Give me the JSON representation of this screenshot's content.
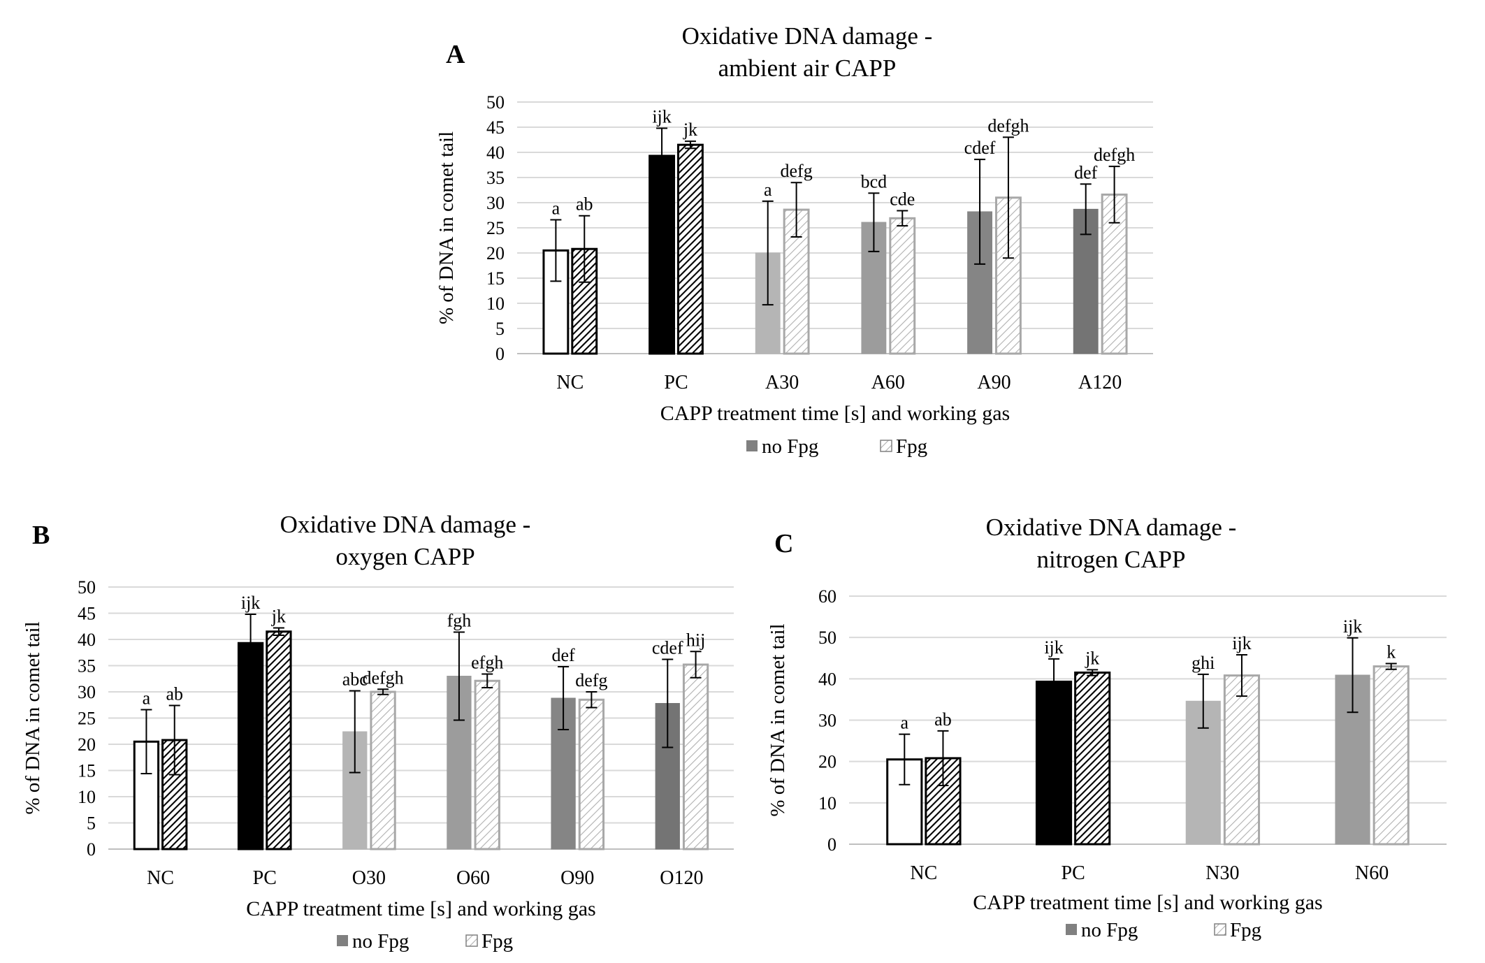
{
  "chart_data": [
    {
      "panel_label": "A",
      "type": "bar",
      "title_line1": "Oxidative DNA damage -",
      "title_line2": "ambient air CAPP",
      "xlabel": "CAPP treatment time [s] and working gas",
      "ylabel": "% of DNA in comet tail",
      "ylim": [
        0,
        50
      ],
      "ytick_step": 5,
      "categories": [
        "NC",
        "PC",
        "A30",
        "A60",
        "A90",
        "A120"
      ],
      "legend": [
        "no Fpg",
        "Fpg"
      ],
      "bar_colors": [
        "#ffffff",
        "#000000",
        "#b5b5b5",
        "#9c9c9c",
        "#858585",
        "#747474"
      ],
      "series": [
        {
          "name": "no Fpg",
          "values": [
            20.5,
            39.3,
            20.0,
            26.1,
            28.2,
            28.7
          ],
          "errors": [
            6.1,
            5.5,
            10.3,
            5.8,
            10.4,
            5.0
          ],
          "labels": [
            "a",
            "ijk",
            "a",
            "bcd",
            "cdef",
            "def"
          ]
        },
        {
          "name": "Fpg",
          "values": [
            20.8,
            41.5,
            28.6,
            26.9,
            31.0,
            31.6
          ],
          "errors": [
            6.6,
            0.7,
            5.4,
            1.5,
            12.0,
            5.6
          ],
          "labels": [
            "ab",
            "jk",
            "defg",
            "cde",
            "defgh",
            "defgh"
          ]
        }
      ]
    },
    {
      "panel_label": "B",
      "type": "bar",
      "title_line1": "Oxidative DNA damage -",
      "title_line2": "oxygen CAPP",
      "xlabel": "CAPP treatment time [s] and working gas",
      "ylabel": "% of DNA in comet tail",
      "ylim": [
        0,
        50
      ],
      "ytick_step": 5,
      "categories": [
        "NC",
        "PC",
        "O30",
        "O60",
        "O90",
        "O120"
      ],
      "legend": [
        "no Fpg",
        "Fpg"
      ],
      "bar_colors": [
        "#ffffff",
        "#000000",
        "#b5b5b5",
        "#9c9c9c",
        "#858585",
        "#747474"
      ],
      "series": [
        {
          "name": "no Fpg",
          "values": [
            20.5,
            39.3,
            22.4,
            33.0,
            28.8,
            27.8
          ],
          "errors": [
            6.1,
            5.5,
            7.8,
            8.4,
            6.0,
            8.4
          ],
          "labels": [
            "a",
            "ijk",
            "abc",
            "fgh",
            "def",
            "cdef"
          ]
        },
        {
          "name": "Fpg",
          "values": [
            20.8,
            41.5,
            30.0,
            32.1,
            28.5,
            35.2
          ],
          "errors": [
            6.6,
            0.7,
            0.5,
            1.3,
            1.5,
            2.5
          ],
          "labels": [
            "ab",
            "jk",
            "defgh",
            "efgh",
            "defg",
            "hij"
          ]
        }
      ]
    },
    {
      "panel_label": "C",
      "type": "bar",
      "title_line1": "Oxidative DNA damage -",
      "title_line2": "nitrogen CAPP",
      "xlabel": "CAPP treatment time [s] and working gas",
      "ylabel": "% of DNA in comet tail",
      "ylim": [
        0,
        60
      ],
      "ytick_step": 10,
      "categories": [
        "NC",
        "PC",
        "N30",
        "N60"
      ],
      "legend": [
        "no Fpg",
        "Fpg"
      ],
      "bar_colors": [
        "#ffffff",
        "#000000",
        "#b5b5b5",
        "#9c9c9c"
      ],
      "series": [
        {
          "name": "no Fpg",
          "values": [
            20.5,
            39.3,
            34.6,
            40.9
          ],
          "errors": [
            6.1,
            5.5,
            6.5,
            9.0
          ],
          "labels": [
            "a",
            "ijk",
            "ghi",
            "ijk"
          ]
        },
        {
          "name": "Fpg",
          "values": [
            20.8,
            41.5,
            40.8,
            43.0
          ],
          "errors": [
            6.6,
            0.7,
            5.0,
            0.7
          ],
          "labels": [
            "ab",
            "jk",
            "ijk",
            "k"
          ]
        }
      ]
    }
  ]
}
